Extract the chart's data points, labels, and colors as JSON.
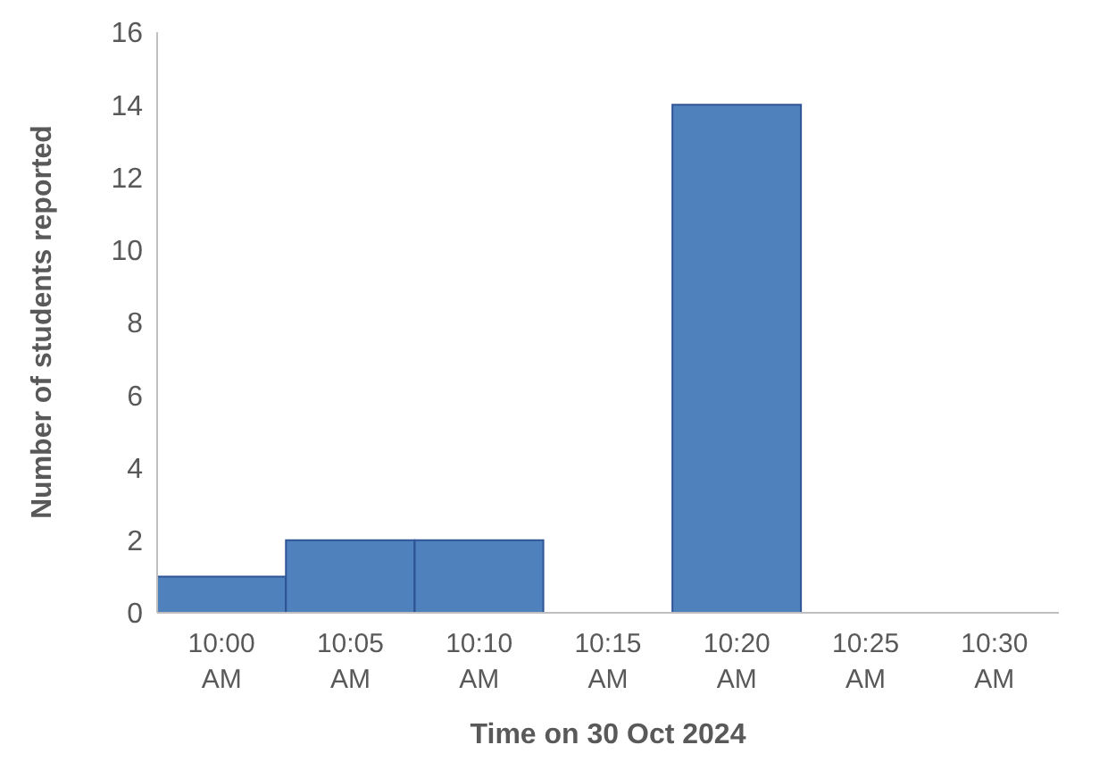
{
  "chart_data": {
    "type": "bar",
    "xlabel": "Time on 30 Oct 2024",
    "ylabel": "Number of students reported",
    "categories": [
      "10:00 AM",
      "10:05 AM",
      "10:10 AM",
      "10:15 AM",
      "10:20 AM",
      "10:25 AM",
      "10:30 AM"
    ],
    "values": [
      1,
      2,
      2,
      0,
      14,
      0,
      0
    ],
    "color": "#4f81bd",
    "ylim": [
      0,
      16
    ],
    "yticks": [
      0,
      2,
      4,
      6,
      8,
      10,
      12,
      14,
      16
    ],
    "grid": false,
    "legend": false
  }
}
